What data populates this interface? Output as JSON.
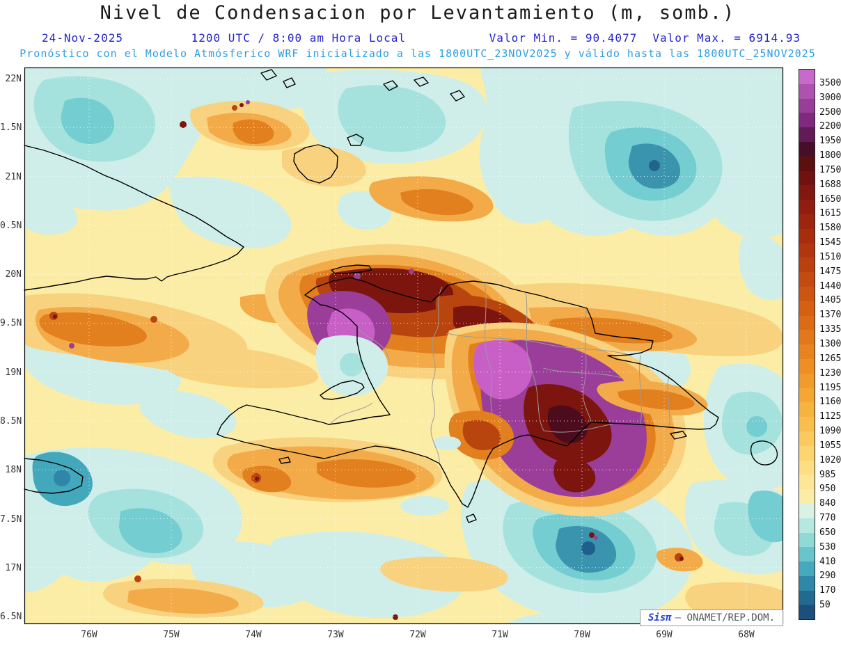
{
  "title": "Nivel de Condensacion por Levantamiento (m, somb.)",
  "header": {
    "date": "24-Nov-2025",
    "time": "1200 UTC / 8:00 am Hora Local",
    "min_label": "Valor Min. = 90.4077",
    "max_label": "Valor Max. = 6914.93",
    "forecast": "Pronóstico con el Modelo Atmósferico WRF inicializado a las 1800UTC_23NOV2025 y válido hasta las  1800UTC_25NOV2025"
  },
  "axes": {
    "lat_labels": [
      "22N",
      "1.5N",
      "21N",
      "0.5N",
      "20N",
      "9.5N",
      "19N",
      "8.5N",
      "18N",
      "7.5N",
      "17N",
      "6.5N"
    ],
    "lon_labels": [
      "76W",
      "75W",
      "74W",
      "73W",
      "72W",
      "71W",
      "70W",
      "69W",
      "68W"
    ]
  },
  "colorbar": {
    "values": [
      "3500",
      "3000",
      "2500",
      "2200",
      "1950",
      "1800",
      "1750",
      "1688",
      "1650",
      "1615",
      "1580",
      "1545",
      "1510",
      "1475",
      "1440",
      "1405",
      "1370",
      "1335",
      "1300",
      "1265",
      "1230",
      "1195",
      "1160",
      "1125",
      "1090",
      "1055",
      "1020",
      "985",
      "950",
      "840",
      "770",
      "650",
      "530",
      "410",
      "290",
      "170",
      "50"
    ],
    "colors": [
      "#c969c9",
      "#af52af",
      "#983d98",
      "#7f2a7f",
      "#621b54",
      "#470e2a",
      "#5c0f0f",
      "#701210",
      "#811810",
      "#8f1e0e",
      "#9c250d",
      "#a82d0d",
      "#b2360d",
      "#bc400e",
      "#c54a10",
      "#cd5512",
      "#d56014",
      "#dc6b17",
      "#e2771b",
      "#e8831f",
      "#ed8f25",
      "#f19b2c",
      "#f4a735",
      "#f7b340",
      "#f9bf4e",
      "#fbca5e",
      "#fcd470",
      "#fdde83",
      "#fde797",
      "#fceda6",
      "#d9f2e4",
      "#b5e8e0",
      "#8fd9d6",
      "#68c5cb",
      "#46aabe",
      "#2f88a8",
      "#226a92",
      "#1b4f7c"
    ]
  },
  "watermark": {
    "brand": "Sisπ",
    "rest": "— ONAMET/REP.DOM."
  }
}
